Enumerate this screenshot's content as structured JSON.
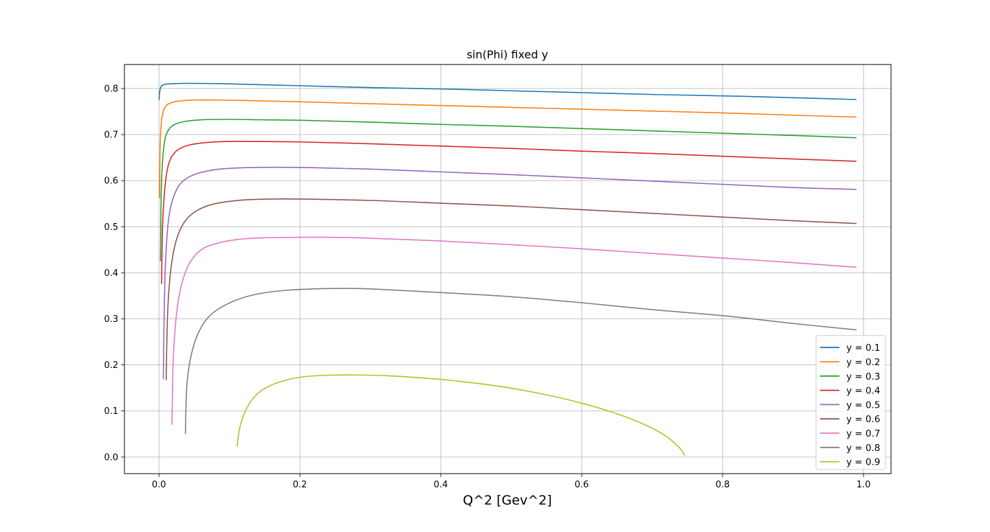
{
  "chart_data": {
    "type": "line",
    "title": "sin(Phi) fixed y",
    "xlabel": "Q^2 [Gev^2]",
    "ylabel": "",
    "xlim": [
      -0.049,
      1.039
    ],
    "ylim": [
      -0.036,
      0.852
    ],
    "xticks": [
      0.0,
      0.2,
      0.4,
      0.6,
      0.8,
      1.0
    ],
    "xtick_labels": [
      "0.0",
      "0.2",
      "0.4",
      "0.6",
      "0.8",
      "1.0"
    ],
    "yticks": [
      0.0,
      0.1,
      0.2,
      0.3,
      0.4,
      0.5,
      0.6,
      0.7,
      0.8
    ],
    "ytick_labels": [
      "0.0",
      "0.1",
      "0.2",
      "0.3",
      "0.4",
      "0.5",
      "0.6",
      "0.7",
      "0.8"
    ],
    "grid": true,
    "legend_position": "lower right",
    "series": [
      {
        "name": "y = 0.1",
        "color": "#1f77b4",
        "x": [
          0.0002,
          0.0008,
          0.002,
          0.004,
          0.008,
          0.015,
          0.03,
          0.06,
          0.1,
          0.2,
          0.3,
          0.4,
          0.5,
          0.6,
          0.7,
          0.8,
          0.9,
          0.99
        ],
        "y": [
          0.775,
          0.79,
          0.8,
          0.806,
          0.809,
          0.81,
          0.811,
          0.811,
          0.81,
          0.806,
          0.802,
          0.799,
          0.795,
          0.791,
          0.787,
          0.784,
          0.78,
          0.776
        ]
      },
      {
        "name": "y = 0.2",
        "color": "#ff7f0e",
        "x": [
          0.001,
          0.0015,
          0.003,
          0.006,
          0.012,
          0.025,
          0.05,
          0.08,
          0.12,
          0.2,
          0.3,
          0.4,
          0.5,
          0.6,
          0.7,
          0.8,
          0.9,
          0.99
        ],
        "y": [
          0.562,
          0.66,
          0.72,
          0.75,
          0.765,
          0.772,
          0.775,
          0.775,
          0.774,
          0.771,
          0.767,
          0.763,
          0.759,
          0.755,
          0.751,
          0.747,
          0.742,
          0.738
        ]
      },
      {
        "name": "y = 0.3",
        "color": "#2ca02c",
        "x": [
          0.0022,
          0.003,
          0.005,
          0.008,
          0.012,
          0.02,
          0.035,
          0.06,
          0.1,
          0.15,
          0.2,
          0.3,
          0.4,
          0.5,
          0.6,
          0.7,
          0.8,
          0.9,
          0.99
        ],
        "y": [
          0.425,
          0.56,
          0.64,
          0.685,
          0.706,
          0.72,
          0.728,
          0.732,
          0.733,
          0.732,
          0.731,
          0.727,
          0.722,
          0.718,
          0.713,
          0.708,
          0.703,
          0.698,
          0.693
        ]
      },
      {
        "name": "y = 0.4",
        "color": "#d62728",
        "x": [
          0.0038,
          0.005,
          0.008,
          0.012,
          0.018,
          0.028,
          0.045,
          0.07,
          0.1,
          0.13,
          0.2,
          0.3,
          0.4,
          0.5,
          0.6,
          0.7,
          0.8,
          0.9,
          0.99
        ],
        "y": [
          0.376,
          0.5,
          0.578,
          0.625,
          0.652,
          0.668,
          0.678,
          0.683,
          0.685,
          0.685,
          0.684,
          0.68,
          0.675,
          0.67,
          0.664,
          0.659,
          0.653,
          0.647,
          0.642
        ]
      },
      {
        "name": "y = 0.5",
        "color": "#9467bd",
        "x": [
          0.0062,
          0.008,
          0.011,
          0.015,
          0.022,
          0.032,
          0.05,
          0.08,
          0.12,
          0.17,
          0.22,
          0.3,
          0.4,
          0.5,
          0.6,
          0.7,
          0.8,
          0.9,
          0.99
        ],
        "y": [
          0.169,
          0.36,
          0.47,
          0.53,
          0.57,
          0.596,
          0.613,
          0.624,
          0.628,
          0.629,
          0.628,
          0.625,
          0.619,
          0.613,
          0.606,
          0.599,
          0.592,
          0.585,
          0.581
        ]
      },
      {
        "name": "y = 0.6",
        "color": "#8c564b",
        "x": [
          0.0102,
          0.012,
          0.015,
          0.02,
          0.027,
          0.038,
          0.055,
          0.08,
          0.12,
          0.16,
          0.2,
          0.3,
          0.4,
          0.5,
          0.6,
          0.7,
          0.8,
          0.9,
          0.99
        ],
        "y": [
          0.167,
          0.3,
          0.38,
          0.44,
          0.482,
          0.514,
          0.536,
          0.55,
          0.558,
          0.56,
          0.56,
          0.557,
          0.551,
          0.545,
          0.537,
          0.529,
          0.521,
          0.513,
          0.507
        ]
      },
      {
        "name": "y = 0.7",
        "color": "#e377c2",
        "x": [
          0.0185,
          0.02,
          0.023,
          0.028,
          0.035,
          0.045,
          0.06,
          0.08,
          0.11,
          0.15,
          0.2,
          0.25,
          0.3,
          0.4,
          0.5,
          0.6,
          0.7,
          0.8,
          0.9,
          0.99
        ],
        "y": [
          0.07,
          0.2,
          0.28,
          0.345,
          0.39,
          0.425,
          0.45,
          0.463,
          0.472,
          0.476,
          0.477,
          0.477,
          0.475,
          0.469,
          0.461,
          0.452,
          0.442,
          0.432,
          0.422,
          0.412
        ]
      },
      {
        "name": "y = 0.8",
        "color": "#7f7f7f",
        "x": [
          0.0375,
          0.039,
          0.042,
          0.048,
          0.056,
          0.068,
          0.085,
          0.11,
          0.14,
          0.18,
          0.22,
          0.26,
          0.3,
          0.4,
          0.5,
          0.6,
          0.7,
          0.8,
          0.9,
          0.99
        ],
        "y": [
          0.05,
          0.14,
          0.19,
          0.235,
          0.27,
          0.3,
          0.322,
          0.341,
          0.354,
          0.362,
          0.365,
          0.366,
          0.365,
          0.357,
          0.348,
          0.335,
          0.32,
          0.307,
          0.29,
          0.276
        ]
      },
      {
        "name": "y = 0.9",
        "color": "#bcbd22",
        "x": [
          0.111,
          0.113,
          0.118,
          0.126,
          0.138,
          0.155,
          0.18,
          0.21,
          0.25,
          0.29,
          0.33,
          0.38,
          0.43,
          0.49,
          0.55,
          0.6,
          0.65,
          0.69,
          0.72,
          0.74,
          0.746
        ],
        "y": [
          0.022,
          0.05,
          0.082,
          0.11,
          0.135,
          0.153,
          0.167,
          0.175,
          0.178,
          0.178,
          0.176,
          0.171,
          0.164,
          0.152,
          0.135,
          0.117,
          0.094,
          0.07,
          0.045,
          0.018,
          0.003
        ]
      }
    ]
  }
}
